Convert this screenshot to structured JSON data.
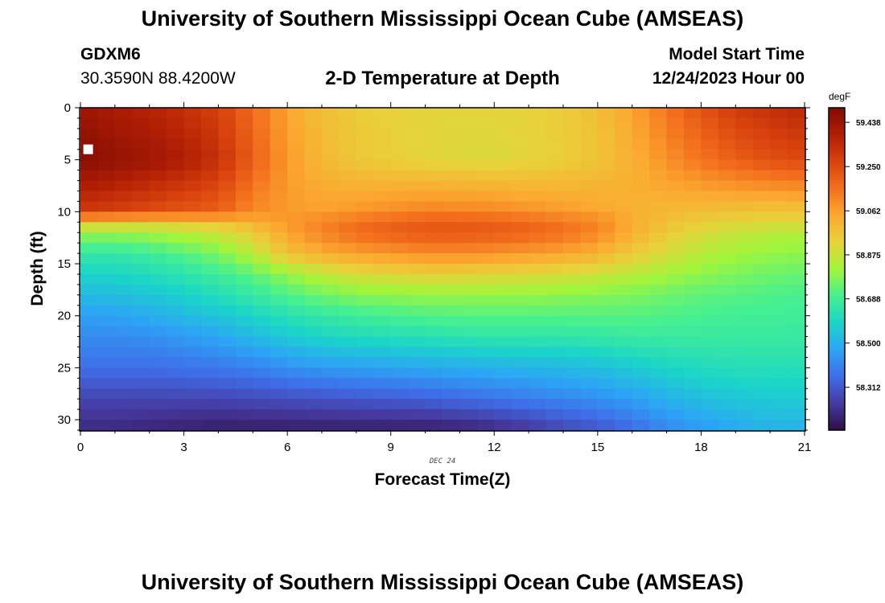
{
  "header": {
    "title": "University of Southern Mississippi Ocean Cube (AMSEAS)",
    "station_id": "GDXM6",
    "coordinates": "30.3590N  88.4200W",
    "plot_title": "2-D Temperature at Depth",
    "model_start_label": "Model Start Time",
    "model_start_value": "12/24/2023 Hour 00"
  },
  "footer": {
    "title": "University of Southern Mississippi Ocean Cube (AMSEAS)"
  },
  "chart_data": {
    "type": "heatmap",
    "title": "2-D Temperature at Depth",
    "xlabel": "Forecast Time(Z)",
    "ylabel": "Depth (ft)",
    "date_annotation": "DEC 24",
    "xlim": [
      0,
      21
    ],
    "ylim": [
      0,
      31
    ],
    "x_ticks": [
      0,
      3,
      6,
      9,
      12,
      15,
      18,
      21
    ],
    "y_ticks": [
      0,
      5,
      10,
      15,
      20,
      25,
      30
    ],
    "x_tick_labels": [
      "0",
      "3",
      "6",
      "9",
      "12",
      "15",
      "18",
      "21"
    ],
    "y_tick_labels": [
      "0",
      "5",
      "10",
      "15",
      "20",
      "25",
      "30"
    ],
    "colorbar": {
      "unit": "degF",
      "min": 58.13,
      "max": 59.5,
      "tick_values": [
        59.438,
        59.25,
        59.062,
        58.875,
        58.688,
        58.5,
        58.312
      ],
      "tick_labels": [
        "59.438",
        "59.250",
        "59.062",
        "58.875",
        "58.688",
        "58.500",
        "58.312"
      ]
    },
    "grid": {
      "time_hours": [
        0,
        1,
        2,
        3,
        4,
        5,
        6,
        7,
        8,
        9,
        10,
        11,
        12,
        13,
        14,
        15,
        16,
        17,
        18,
        19,
        20,
        21
      ],
      "depth_ft": [
        0,
        5,
        10,
        11,
        12,
        14,
        16,
        18,
        20,
        22,
        25,
        28,
        31
      ],
      "values": [
        [
          59.43,
          59.4,
          59.37,
          59.33,
          59.28,
          59.17,
          59.05,
          58.98,
          58.95,
          58.93,
          58.92,
          58.92,
          58.92,
          58.93,
          58.95,
          58.98,
          59.05,
          59.15,
          59.23,
          59.3,
          59.33,
          59.36
        ],
        [
          59.49,
          59.46,
          59.43,
          59.39,
          59.33,
          59.2,
          59.07,
          59.0,
          58.96,
          58.94,
          58.92,
          58.91,
          58.91,
          58.92,
          58.94,
          58.97,
          59.02,
          59.09,
          59.15,
          59.2,
          59.24,
          59.26
        ],
        [
          59.3,
          59.28,
          59.25,
          59.22,
          59.2,
          59.1,
          59.07,
          59.06,
          59.08,
          59.1,
          59.12,
          59.12,
          59.11,
          59.09,
          59.07,
          59.05,
          59.02,
          59.0,
          58.98,
          58.97,
          58.96,
          58.96
        ],
        [
          58.97,
          58.96,
          58.95,
          58.96,
          58.98,
          59.02,
          59.08,
          59.12,
          59.16,
          59.19,
          59.21,
          59.21,
          59.2,
          59.18,
          59.15,
          59.12,
          59.03,
          58.98,
          58.95,
          58.93,
          58.92,
          58.92
        ],
        [
          58.8,
          58.8,
          58.82,
          58.85,
          58.88,
          58.95,
          59.05,
          59.12,
          59.17,
          59.2,
          59.22,
          59.22,
          59.21,
          59.19,
          59.16,
          59.11,
          59.02,
          58.95,
          58.9,
          58.87,
          58.85,
          58.84
        ],
        [
          58.66,
          58.66,
          58.68,
          58.72,
          58.77,
          58.85,
          58.98,
          59.03,
          59.06,
          59.08,
          59.1,
          59.1,
          59.09,
          59.07,
          59.05,
          59.02,
          58.95,
          58.9,
          58.85,
          58.82,
          58.8,
          58.79
        ],
        [
          58.58,
          58.59,
          58.61,
          58.64,
          58.68,
          58.73,
          58.8,
          58.86,
          58.9,
          58.92,
          58.93,
          58.93,
          58.92,
          58.91,
          58.9,
          58.88,
          58.85,
          58.82,
          58.79,
          58.77,
          58.75,
          58.74
        ],
        [
          58.52,
          58.53,
          58.55,
          58.58,
          58.62,
          58.66,
          58.71,
          58.75,
          58.78,
          58.79,
          58.8,
          58.8,
          58.8,
          58.8,
          58.79,
          58.78,
          58.77,
          58.75,
          58.73,
          58.72,
          58.71,
          58.7
        ],
        [
          58.46,
          58.47,
          58.49,
          58.52,
          58.55,
          58.59,
          58.63,
          58.66,
          58.68,
          58.7,
          58.71,
          58.72,
          58.72,
          58.72,
          58.72,
          58.72,
          58.72,
          58.71,
          58.7,
          58.69,
          58.69,
          58.68
        ],
        [
          58.42,
          58.42,
          58.43,
          58.45,
          58.48,
          58.52,
          58.56,
          58.59,
          58.61,
          58.62,
          58.63,
          58.64,
          58.65,
          58.65,
          58.65,
          58.66,
          58.67,
          58.67,
          58.67,
          58.67,
          58.67,
          58.67
        ],
        [
          58.36,
          58.36,
          58.36,
          58.37,
          58.38,
          58.4,
          58.43,
          58.45,
          58.46,
          58.47,
          58.48,
          58.49,
          58.5,
          58.51,
          58.52,
          58.53,
          58.56,
          58.59,
          58.61,
          58.62,
          58.62,
          58.62
        ],
        [
          58.27,
          58.27,
          58.27,
          58.27,
          58.27,
          58.28,
          58.29,
          58.3,
          58.31,
          58.32,
          58.33,
          58.35,
          58.37,
          58.39,
          58.41,
          58.43,
          58.46,
          58.5,
          58.53,
          58.55,
          58.56,
          58.56
        ],
        [
          58.2,
          58.2,
          58.19,
          58.18,
          58.17,
          58.17,
          58.17,
          58.17,
          58.17,
          58.17,
          58.17,
          58.18,
          58.2,
          58.23,
          58.27,
          58.3,
          58.35,
          58.41,
          58.45,
          58.48,
          58.5,
          58.5
        ]
      ]
    },
    "observation_marker": {
      "time": 0.2,
      "depth": 4
    }
  },
  "colors": {
    "scale": [
      "#2d0f45",
      "#463aa0",
      "#3f6ee8",
      "#2ca5f5",
      "#1ad5c8",
      "#46f090",
      "#a2f53a",
      "#e8d23a",
      "#fba830",
      "#f3701d",
      "#d9430d",
      "#b01e04",
      "#820c02"
    ]
  }
}
